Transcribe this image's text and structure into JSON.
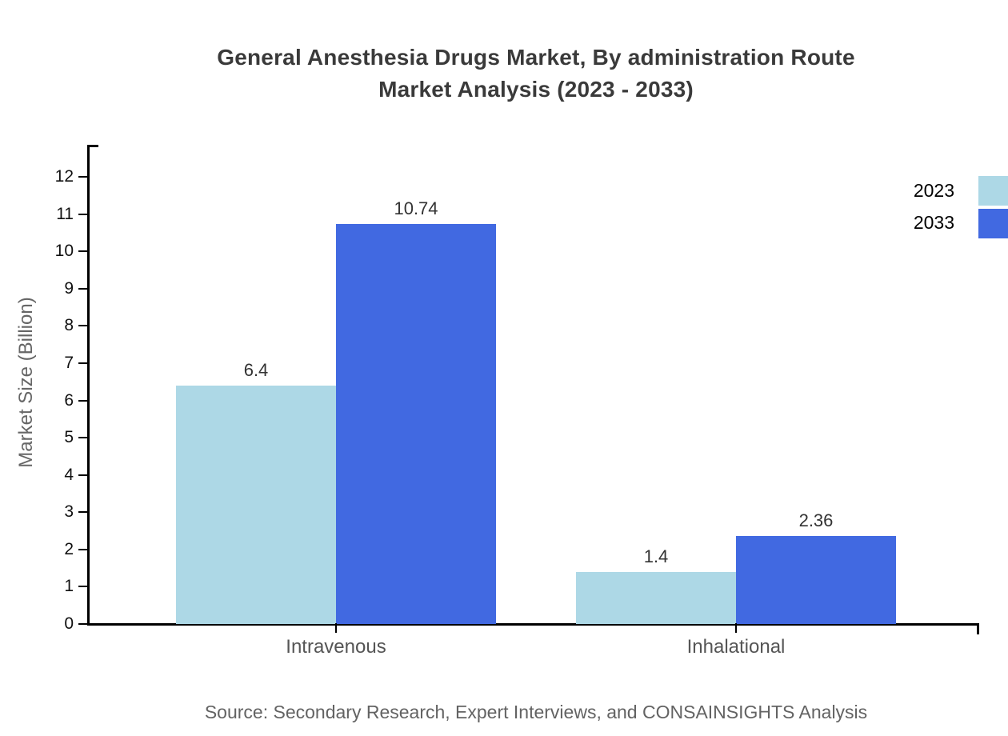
{
  "title": {
    "line1": "General Anesthesia Drugs Market, By administration Route",
    "line2": "Market Analysis (2023 - 2033)"
  },
  "footer": {
    "source": "Source: Secondary Research, Expert Interviews, and CONSAINSIGHTS Analysis"
  },
  "colors": {
    "series_2023": "#ADD8E6",
    "series_2033": "#4169E1",
    "axis": "#000000",
    "title_text": "#3a3a3a",
    "tick_label": "#111111",
    "category_label": "#555555",
    "axis_title": "#666666",
    "value_label": "#333333",
    "source_text": "#636363"
  },
  "chart_data": {
    "type": "bar",
    "title": "General Anesthesia Drugs Market, By administration Route Market Analysis (2023 - 2033)",
    "categories": [
      "Intravenous",
      "Inhalational"
    ],
    "series": [
      {
        "name": "2023",
        "color": "#ADD8E6",
        "values": [
          6.4,
          1.4
        ]
      },
      {
        "name": "2033",
        "color": "#4169E1",
        "values": [
          10.74,
          2.36
        ]
      }
    ],
    "xlabel": "",
    "ylabel": "Market Size (Billion)",
    "ylim": [
      0,
      12
    ],
    "ytick_step": 1,
    "grid": false,
    "legend_position": "top-right",
    "legend_entries": [
      "2023",
      "2033"
    ]
  }
}
